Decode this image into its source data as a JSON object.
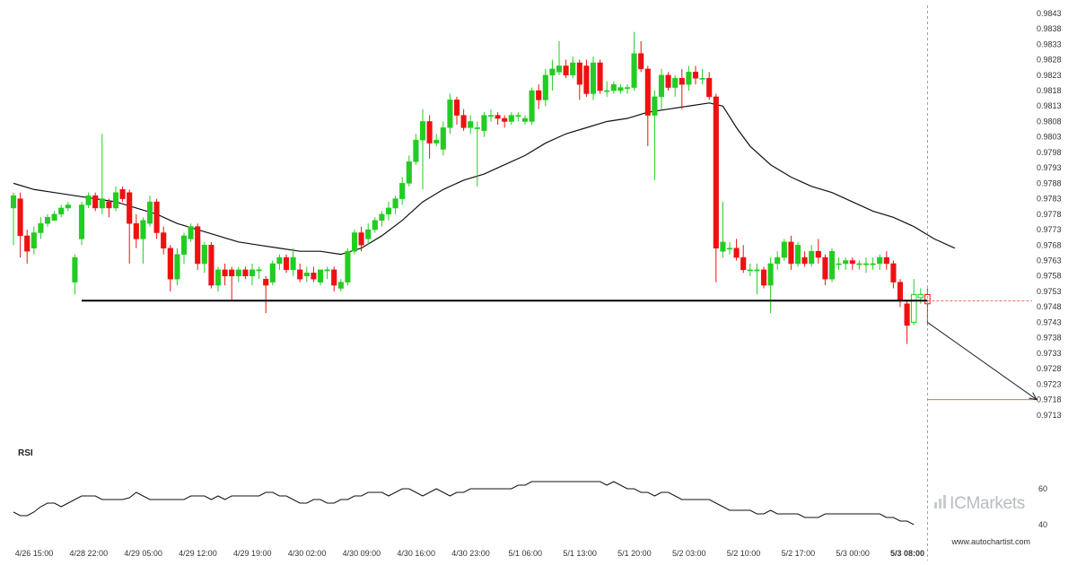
{
  "chart_data": [
    {
      "type": "candlestick",
      "price_axis": {
        "ylim": [
          0.9708,
          0.9845
        ],
        "tick_labels": [
          "0.9843",
          "0.9838",
          "0.9833",
          "0.9828",
          "0.9823",
          "0.9818",
          "0.9813",
          "0.9808",
          "0.9803",
          "0.9798",
          "0.9793",
          "0.9788",
          "0.9783",
          "0.9778",
          "0.9773",
          "0.9768",
          "0.9763",
          "0.9758",
          "0.9753",
          "0.9748",
          "0.9743",
          "0.9738",
          "0.9733",
          "0.9728",
          "0.9723",
          "0.9718",
          "0.9713"
        ]
      },
      "x_tick_labels": [
        "4/26 15:00",
        "4/28 22:00",
        "4/29 05:00",
        "4/29 12:00",
        "4/29 19:00",
        "4/30 02:00",
        "4/30 09:00",
        "4/30 16:00",
        "4/30 23:00",
        "5/1 06:00",
        "5/1 13:00",
        "5/1 20:00",
        "5/2 03:00",
        "5/2 10:00",
        "5/2 17:00",
        "5/3 00:00",
        "5/3 08:00"
      ],
      "colors": {
        "up": "#22cc22",
        "down": "#ee1111",
        "ma": "#111111",
        "support": "#000000",
        "target": "#e08a4a"
      },
      "candles": [
        [
          0.978,
          0.9784,
          0.9768,
          0.9785
        ],
        [
          0.9783,
          0.9771,
          0.9764,
          0.9785
        ],
        [
          0.9771,
          0.9766,
          0.9762,
          0.9773
        ],
        [
          0.9767,
          0.9772,
          0.9765,
          0.9774
        ],
        [
          0.9772,
          0.9775,
          0.977,
          0.9777
        ],
        [
          0.9775,
          0.9777,
          0.9774,
          0.9778
        ],
        [
          0.9776,
          0.9778,
          0.9776,
          0.9779
        ],
        [
          0.9778,
          0.978,
          0.9777,
          0.9781
        ],
        [
          0.978,
          0.9781,
          0.9779,
          0.9782
        ],
        [
          0.9756,
          0.9764,
          0.9752,
          0.9765
        ],
        [
          0.977,
          0.9781,
          0.9768,
          0.9782
        ],
        [
          0.9781,
          0.9784,
          0.978,
          0.9785
        ],
        [
          0.9784,
          0.978,
          0.9779,
          0.9785
        ],
        [
          0.978,
          0.9783,
          0.9778,
          0.9804
        ],
        [
          0.9782,
          0.978,
          0.9777,
          0.9783
        ],
        [
          0.978,
          0.9785,
          0.9779,
          0.9787
        ],
        [
          0.9786,
          0.9783,
          0.9782,
          0.9787
        ],
        [
          0.9785,
          0.9775,
          0.9762,
          0.9786
        ],
        [
          0.9775,
          0.977,
          0.9767,
          0.9778
        ],
        [
          0.977,
          0.9776,
          0.9762,
          0.9777
        ],
        [
          0.9775,
          0.9782,
          0.9774,
          0.9784
        ],
        [
          0.9782,
          0.9772,
          0.977,
          0.9783
        ],
        [
          0.9772,
          0.9767,
          0.9765,
          0.9774
        ],
        [
          0.9767,
          0.9757,
          0.9753,
          0.9768
        ],
        [
          0.9757,
          0.9765,
          0.9755,
          0.9767
        ],
        [
          0.9765,
          0.9771,
          0.9762,
          0.9772
        ],
        [
          0.977,
          0.9774,
          0.9769,
          0.9775
        ],
        [
          0.9774,
          0.9762,
          0.976,
          0.9775
        ],
        [
          0.9762,
          0.9768,
          0.9759,
          0.9769
        ],
        [
          0.9768,
          0.9755,
          0.9754,
          0.9769
        ],
        [
          0.9755,
          0.976,
          0.9753,
          0.9761
        ],
        [
          0.976,
          0.9758,
          0.9755,
          0.9762
        ],
        [
          0.976,
          0.9758,
          0.975,
          0.9761
        ],
        [
          0.9758,
          0.976,
          0.9756,
          0.9761
        ],
        [
          0.976,
          0.9758,
          0.9757,
          0.9761
        ],
        [
          0.9758,
          0.976,
          0.9755,
          0.9762
        ],
        [
          0.976,
          0.976,
          0.9757,
          0.9761
        ],
        [
          0.9757,
          0.9755,
          0.9746,
          0.9758
        ],
        [
          0.9756,
          0.9762,
          0.9755,
          0.9763
        ],
        [
          0.9762,
          0.9764,
          0.976,
          0.9765
        ],
        [
          0.9764,
          0.976,
          0.9759,
          0.9765
        ],
        [
          0.976,
          0.9764,
          0.9758,
          0.9767
        ],
        [
          0.976,
          0.9757,
          0.9756,
          0.9762
        ],
        [
          0.9758,
          0.9759,
          0.9756,
          0.9761
        ],
        [
          0.9759,
          0.9757,
          0.9756,
          0.9761
        ],
        [
          0.9756,
          0.976,
          0.9755,
          0.976
        ],
        [
          0.976,
          0.976,
          0.9757,
          0.9761
        ],
        [
          0.976,
          0.9755,
          0.9753,
          0.9761
        ],
        [
          0.9754,
          0.9756,
          0.9753,
          0.9757
        ],
        [
          0.9756,
          0.9766,
          0.9755,
          0.9767
        ],
        [
          0.9766,
          0.9772,
          0.9765,
          0.9773
        ],
        [
          0.9772,
          0.9768,
          0.9766,
          0.9774
        ],
        [
          0.977,
          0.9773,
          0.9768,
          0.9775
        ],
        [
          0.9773,
          0.9776,
          0.9772,
          0.9777
        ],
        [
          0.9776,
          0.9778,
          0.9774,
          0.9779
        ],
        [
          0.9778,
          0.978,
          0.9776,
          0.9782
        ],
        [
          0.978,
          0.9783,
          0.9778,
          0.9784
        ],
        [
          0.9783,
          0.9788,
          0.9781,
          0.979
        ],
        [
          0.9788,
          0.9795,
          0.9787,
          0.9797
        ],
        [
          0.9795,
          0.9802,
          0.9794,
          0.9804
        ],
        [
          0.9802,
          0.9808,
          0.9786,
          0.9812
        ],
        [
          0.9808,
          0.9801,
          0.9796,
          0.981
        ],
        [
          0.9801,
          0.9802,
          0.98,
          0.9804
        ],
        [
          0.9799,
          0.9806,
          0.9797,
          0.9808
        ],
        [
          0.9806,
          0.9815,
          0.9804,
          0.9817
        ],
        [
          0.9815,
          0.981,
          0.9807,
          0.9816
        ],
        [
          0.981,
          0.9806,
          0.9805,
          0.9812
        ],
        [
          0.9806,
          0.9808,
          0.9804,
          0.981
        ],
        [
          0.9806,
          0.9806,
          0.9787,
          0.9808
        ],
        [
          0.9805,
          0.981,
          0.9803,
          0.9811
        ],
        [
          0.981,
          0.981,
          0.9808,
          0.9812
        ],
        [
          0.981,
          0.9809,
          0.9807,
          0.9811
        ],
        [
          0.9809,
          0.9808,
          0.9806,
          0.981
        ],
        [
          0.9808,
          0.981,
          0.9807,
          0.9811
        ],
        [
          0.981,
          0.981,
          0.9808,
          0.9811
        ],
        [
          0.9808,
          0.9809,
          0.9807,
          0.981
        ],
        [
          0.9808,
          0.9818,
          0.9807,
          0.9819
        ],
        [
          0.9818,
          0.9815,
          0.9812,
          0.982
        ],
        [
          0.9815,
          0.9823,
          0.9813,
          0.9825
        ],
        [
          0.9823,
          0.9825,
          0.9818,
          0.9828
        ],
        [
          0.9824,
          0.9826,
          0.9823,
          0.9834
        ],
        [
          0.9826,
          0.9823,
          0.9822,
          0.9828
        ],
        [
          0.9823,
          0.9827,
          0.9822,
          0.9829
        ],
        [
          0.9827,
          0.982,
          0.9815,
          0.9828
        ],
        [
          0.9826,
          0.9817,
          0.9816,
          0.9828
        ],
        [
          0.9817,
          0.9827,
          0.9815,
          0.9829
        ],
        [
          0.9827,
          0.9818,
          0.9817,
          0.9828
        ],
        [
          0.9818,
          0.9818,
          0.9816,
          0.9821
        ],
        [
          0.9818,
          0.982,
          0.9817,
          0.9821
        ],
        [
          0.9818,
          0.9819,
          0.9817,
          0.982
        ],
        [
          0.9819,
          0.9819,
          0.9817,
          0.982
        ],
        [
          0.9819,
          0.983,
          0.9818,
          0.9837
        ],
        [
          0.983,
          0.9825,
          0.9824,
          0.9834
        ],
        [
          0.9825,
          0.981,
          0.98,
          0.9826
        ],
        [
          0.981,
          0.9816,
          0.9789,
          0.9818
        ],
        [
          0.9816,
          0.9823,
          0.9812,
          0.9825
        ],
        [
          0.9823,
          0.9819,
          0.9818,
          0.9824
        ],
        [
          0.9819,
          0.9822,
          0.9816,
          0.9823
        ],
        [
          0.9822,
          0.982,
          0.9812,
          0.9825
        ],
        [
          0.982,
          0.9824,
          0.9818,
          0.9826
        ],
        [
          0.9824,
          0.9822,
          0.982,
          0.9826
        ],
        [
          0.9822,
          0.9822,
          0.982,
          0.9825
        ],
        [
          0.9822,
          0.9816,
          0.9815,
          0.9824
        ],
        [
          0.9816,
          0.9767,
          0.9756,
          0.9817
        ],
        [
          0.9766,
          0.9769,
          0.9764,
          0.9782
        ],
        [
          0.9767,
          0.9767,
          0.9765,
          0.9769
        ],
        [
          0.9767,
          0.9764,
          0.9763,
          0.977
        ],
        [
          0.9764,
          0.976,
          0.9759,
          0.9768
        ],
        [
          0.976,
          0.976,
          0.9758,
          0.9762
        ],
        [
          0.976,
          0.976,
          0.9752,
          0.9762
        ],
        [
          0.976,
          0.9755,
          0.9754,
          0.9761
        ],
        [
          0.9755,
          0.9762,
          0.9746,
          0.9764
        ],
        [
          0.9762,
          0.9764,
          0.976,
          0.9766
        ],
        [
          0.9764,
          0.9769,
          0.9763,
          0.977
        ],
        [
          0.9769,
          0.9762,
          0.976,
          0.9771
        ],
        [
          0.9762,
          0.9768,
          0.9761,
          0.9769
        ],
        [
          0.9764,
          0.9762,
          0.9761,
          0.9766
        ],
        [
          0.9762,
          0.9766,
          0.9761,
          0.9768
        ],
        [
          0.9766,
          0.9764,
          0.9762,
          0.977
        ],
        [
          0.9764,
          0.9757,
          0.9755,
          0.9765
        ],
        [
          0.9757,
          0.9766,
          0.9756,
          0.9767
        ],
        [
          0.9762,
          0.9762,
          0.976,
          0.9764
        ],
        [
          0.9762,
          0.9763,
          0.976,
          0.9764
        ],
        [
          0.9763,
          0.9762,
          0.976,
          0.9764
        ],
        [
          0.9762,
          0.9762,
          0.976,
          0.9763
        ],
        [
          0.9762,
          0.9762,
          0.9759,
          0.9764
        ],
        [
          0.9762,
          0.9762,
          0.976,
          0.9764
        ],
        [
          0.9762,
          0.9764,
          0.976,
          0.9765
        ],
        [
          0.9764,
          0.9762,
          0.976,
          0.9766
        ],
        [
          0.9762,
          0.9756,
          0.9754,
          0.9763
        ],
        [
          0.9756,
          0.975,
          0.9748,
          0.9757
        ],
        [
          0.9749,
          0.9742,
          0.9736,
          0.975
        ],
        [
          0.9743,
          0.9752,
          0.9742,
          0.9757
        ],
        [
          0.9751,
          0.9752,
          0.9749,
          0.9754
        ],
        [
          0.9752,
          0.9749,
          0.9742,
          0.9754
        ]
      ],
      "moving_average": [
        [
          0,
          0.9788
        ],
        [
          3,
          0.9786
        ],
        [
          6,
          0.9785
        ],
        [
          9,
          0.9784
        ],
        [
          12,
          0.9783
        ],
        [
          15,
          0.9782
        ],
        [
          18,
          0.978
        ],
        [
          21,
          0.9778
        ],
        [
          24,
          0.9775
        ],
        [
          27,
          0.9773
        ],
        [
          30,
          0.9771
        ],
        [
          33,
          0.9769
        ],
        [
          36,
          0.9768
        ],
        [
          39,
          0.9767
        ],
        [
          42,
          0.9766
        ],
        [
          45,
          0.9766
        ],
        [
          48,
          0.9765
        ],
        [
          51,
          0.9767
        ],
        [
          54,
          0.9771
        ],
        [
          57,
          0.9776
        ],
        [
          60,
          0.9782
        ],
        [
          63,
          0.9786
        ],
        [
          66,
          0.9789
        ],
        [
          69,
          0.9791
        ],
        [
          72,
          0.9794
        ],
        [
          75,
          0.9797
        ],
        [
          78,
          0.9801
        ],
        [
          81,
          0.9804
        ],
        [
          84,
          0.9806
        ],
        [
          87,
          0.9808
        ],
        [
          90,
          0.9809
        ],
        [
          93,
          0.9811
        ],
        [
          96,
          0.9812
        ],
        [
          99,
          0.9813
        ],
        [
          102,
          0.9814
        ],
        [
          104,
          0.9813
        ],
        [
          106,
          0.9806
        ],
        [
          108,
          0.98
        ],
        [
          111,
          0.9794
        ],
        [
          114,
          0.979
        ],
        [
          117,
          0.9787
        ],
        [
          120,
          0.9785
        ],
        [
          123,
          0.9782
        ],
        [
          126,
          0.9779
        ],
        [
          129,
          0.9777
        ],
        [
          132,
          0.9774
        ],
        [
          135,
          0.977
        ],
        [
          138,
          0.9767
        ]
      ],
      "support_level": 0.975,
      "support_start_index": 10,
      "forecast": {
        "from_index": 134,
        "from_price": 0.9743,
        "to_index": 150,
        "to_price": 0.9718
      },
      "target_level": 0.9718,
      "target_start_index": 134,
      "current_price": 0.975,
      "vertical_marker_index": 134
    },
    {
      "type": "line",
      "title": "RSI",
      "ylim": [
        35,
        75
      ],
      "tick_labels": [
        "60",
        "40"
      ],
      "tick_values": [
        60,
        40
      ],
      "values": [
        47,
        45,
        45,
        47,
        50,
        52,
        52,
        50,
        52,
        54,
        56,
        56,
        56,
        54,
        54,
        54,
        54,
        55,
        58,
        56,
        54,
        54,
        54,
        54,
        54,
        54,
        56,
        56,
        56,
        54,
        56,
        54,
        56,
        56,
        56,
        56,
        56,
        58,
        58,
        56,
        56,
        54,
        52,
        52,
        54,
        54,
        52,
        52,
        54,
        54,
        56,
        56,
        58,
        58,
        58,
        56,
        58,
        60,
        60,
        58,
        56,
        58,
        60,
        58,
        56,
        58,
        58,
        60,
        60,
        60,
        60,
        60,
        60,
        60,
        62,
        62,
        64,
        64,
        64,
        64,
        64,
        64,
        64,
        64,
        64,
        64,
        64,
        62,
        64,
        62,
        60,
        60,
        58,
        58,
        56,
        58,
        58,
        56,
        54,
        54,
        54,
        54,
        54,
        52,
        50,
        48,
        48,
        48,
        48,
        46,
        46,
        48,
        46,
        46,
        46,
        46,
        44,
        44,
        44,
        46,
        46,
        46,
        46,
        46,
        46,
        46,
        46,
        46,
        44,
        44,
        42,
        42,
        40
      ]
    }
  ],
  "rsi_label": "RSI",
  "brand": {
    "logo_text": "ICMarkets"
  },
  "source": "www.autochartist.com"
}
